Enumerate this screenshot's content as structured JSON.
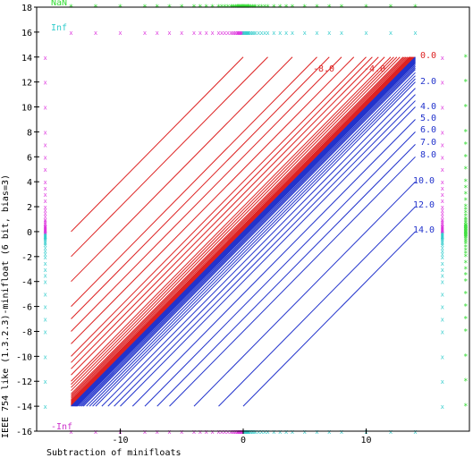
{
  "chart_data": {
    "type": "line",
    "xlabel": "Subtraction of minifloats",
    "ylabel": "IEEE 754 like (1.3.2.3)-minifloat (6 bit, bias=3)",
    "xlim": [
      -16.8,
      18.4
    ],
    "ylim": [
      -16,
      18
    ],
    "x_ticks": [
      -10,
      0,
      10
    ],
    "y_ticks": [
      -16,
      -14,
      -12,
      -10,
      -8,
      -6,
      -4,
      -2,
      0,
      2,
      4,
      6,
      8,
      10,
      12,
      14,
      16,
      18
    ],
    "special_labels": [
      {
        "text": "NaN",
        "color": "#33dd33",
        "anchor": "top"
      },
      {
        "text": "Inf",
        "color": "#33cccc",
        "anchor": "upper"
      },
      {
        "text": "-Inf",
        "color": "#cc33cc",
        "anchor": "lower"
      }
    ],
    "contour_labels": [
      {
        "text": "-8.0",
        "color": "#dd2222"
      },
      {
        "text": "-4.0",
        "color": "#dd2222"
      },
      {
        "text": "0.0",
        "color": "#dd2222"
      },
      {
        "text": "2.0",
        "color": "#2233cc"
      },
      {
        "text": "4.0",
        "color": "#2233cc"
      },
      {
        "text": "5.0",
        "color": "#2233cc"
      },
      {
        "text": "6.0",
        "color": "#2233cc"
      },
      {
        "text": "7.0",
        "color": "#2233cc"
      },
      {
        "text": "8.0",
        "color": "#2233cc"
      },
      {
        "text": "10.0",
        "color": "#2233cc"
      },
      {
        "text": "12.0",
        "color": "#2233cc"
      },
      {
        "text": "14.0",
        "color": "#2233cc"
      }
    ],
    "minifloat_values": [
      0,
      0.0625,
      0.125,
      0.1875,
      0.25,
      0.3125,
      0.375,
      0.4375,
      0.5,
      0.625,
      0.75,
      0.875,
      1,
      1.25,
      1.5,
      1.75,
      2,
      2.5,
      3,
      3.5,
      4,
      5,
      6,
      7,
      8,
      10,
      12,
      14
    ],
    "negative_differences": [
      -14,
      -12,
      -10,
      -8,
      -7,
      -6,
      -5,
      -4,
      -3.5,
      -3,
      -2.5,
      -2,
      -1.75,
      -1.5,
      -1.25,
      -1,
      -0.875,
      -0.75,
      -0.625,
      -0.5,
      -0.4375,
      -0.375,
      -0.3125,
      -0.25,
      -0.1875,
      -0.125,
      -0.0625
    ],
    "positive_differences": [
      0.0625,
      0.125,
      0.1875,
      0.25,
      0.3125,
      0.375,
      0.4375,
      0.5,
      0.625,
      0.75,
      0.875,
      1,
      1.25,
      1.5,
      1.75,
      2,
      2.5,
      3,
      3.5,
      4,
      5,
      6,
      7,
      8,
      10,
      12,
      14
    ],
    "colors": {
      "negative_contours": "#dd2222",
      "positive_contours": "#2233cc",
      "zero_contour": "#2233cc",
      "nan_marks": "#33dd33",
      "inf_marks": "#33cccc",
      "neg_inf_marks": "#dd33dd",
      "axis": "#000000"
    }
  }
}
